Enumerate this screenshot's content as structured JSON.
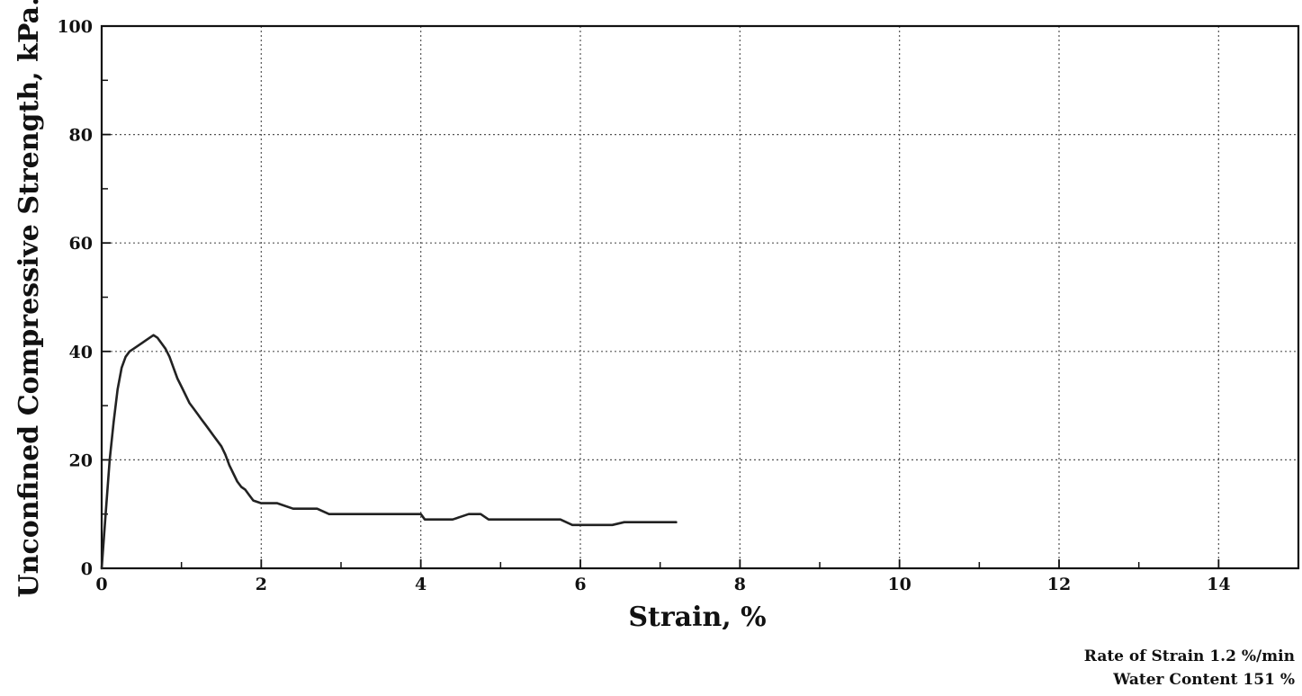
{
  "chart_data": {
    "type": "line",
    "title": "",
    "xlabel": "Strain, %",
    "ylabel": "Unconfined Compressive Strength, kPa.",
    "xlim": [
      0,
      15
    ],
    "ylim": [
      0,
      100
    ],
    "grid": true,
    "x_ticks": [
      0,
      2,
      4,
      6,
      8,
      10,
      12,
      14
    ],
    "y_ticks": [
      0,
      20,
      40,
      60,
      80,
      100
    ],
    "series": [
      {
        "color": "#222222",
        "points": [
          [
            0,
            0
          ],
          [
            0.05,
            10
          ],
          [
            0.1,
            20
          ],
          [
            0.15,
            27
          ],
          [
            0.2,
            33
          ],
          [
            0.25,
            37
          ],
          [
            0.3,
            39
          ],
          [
            0.35,
            40
          ],
          [
            0.4,
            40.5
          ],
          [
            0.45,
            41
          ],
          [
            0.5,
            41.5
          ],
          [
            0.55,
            42
          ],
          [
            0.6,
            42.5
          ],
          [
            0.65,
            43
          ],
          [
            0.7,
            42.5
          ],
          [
            0.75,
            41.5
          ],
          [
            0.8,
            40.5
          ],
          [
            0.85,
            39
          ],
          [
            0.9,
            37
          ],
          [
            0.95,
            35
          ],
          [
            1.0,
            33.5
          ],
          [
            1.05,
            32
          ],
          [
            1.1,
            30.5
          ],
          [
            1.15,
            29.5
          ],
          [
            1.2,
            28.5
          ],
          [
            1.25,
            27.5
          ],
          [
            1.3,
            26.5
          ],
          [
            1.35,
            25.5
          ],
          [
            1.4,
            24.5
          ],
          [
            1.45,
            23.5
          ],
          [
            1.5,
            22.5
          ],
          [
            1.55,
            21
          ],
          [
            1.6,
            19
          ],
          [
            1.65,
            17.5
          ],
          [
            1.7,
            16
          ],
          [
            1.75,
            15
          ],
          [
            1.8,
            14.5
          ],
          [
            1.85,
            13.5
          ],
          [
            1.9,
            12.5
          ],
          [
            2.0,
            12
          ],
          [
            2.2,
            12
          ],
          [
            2.4,
            11
          ],
          [
            2.7,
            11
          ],
          [
            2.85,
            10
          ],
          [
            3.5,
            10
          ],
          [
            4.0,
            10
          ],
          [
            4.05,
            9
          ],
          [
            4.4,
            9
          ],
          [
            4.5,
            9.5
          ],
          [
            4.6,
            10
          ],
          [
            4.75,
            10
          ],
          [
            4.85,
            9
          ],
          [
            5.5,
            9
          ],
          [
            5.75,
            9
          ],
          [
            5.9,
            8
          ],
          [
            6.0,
            8
          ],
          [
            6.4,
            8
          ],
          [
            6.55,
            8.5
          ],
          [
            6.65,
            8.5
          ],
          [
            7.2,
            8.5
          ]
        ]
      }
    ]
  },
  "notes": {
    "rate_of_strain": "Rate of Strain 1.2 %/min",
    "water_content": "Water Content 151 %"
  }
}
